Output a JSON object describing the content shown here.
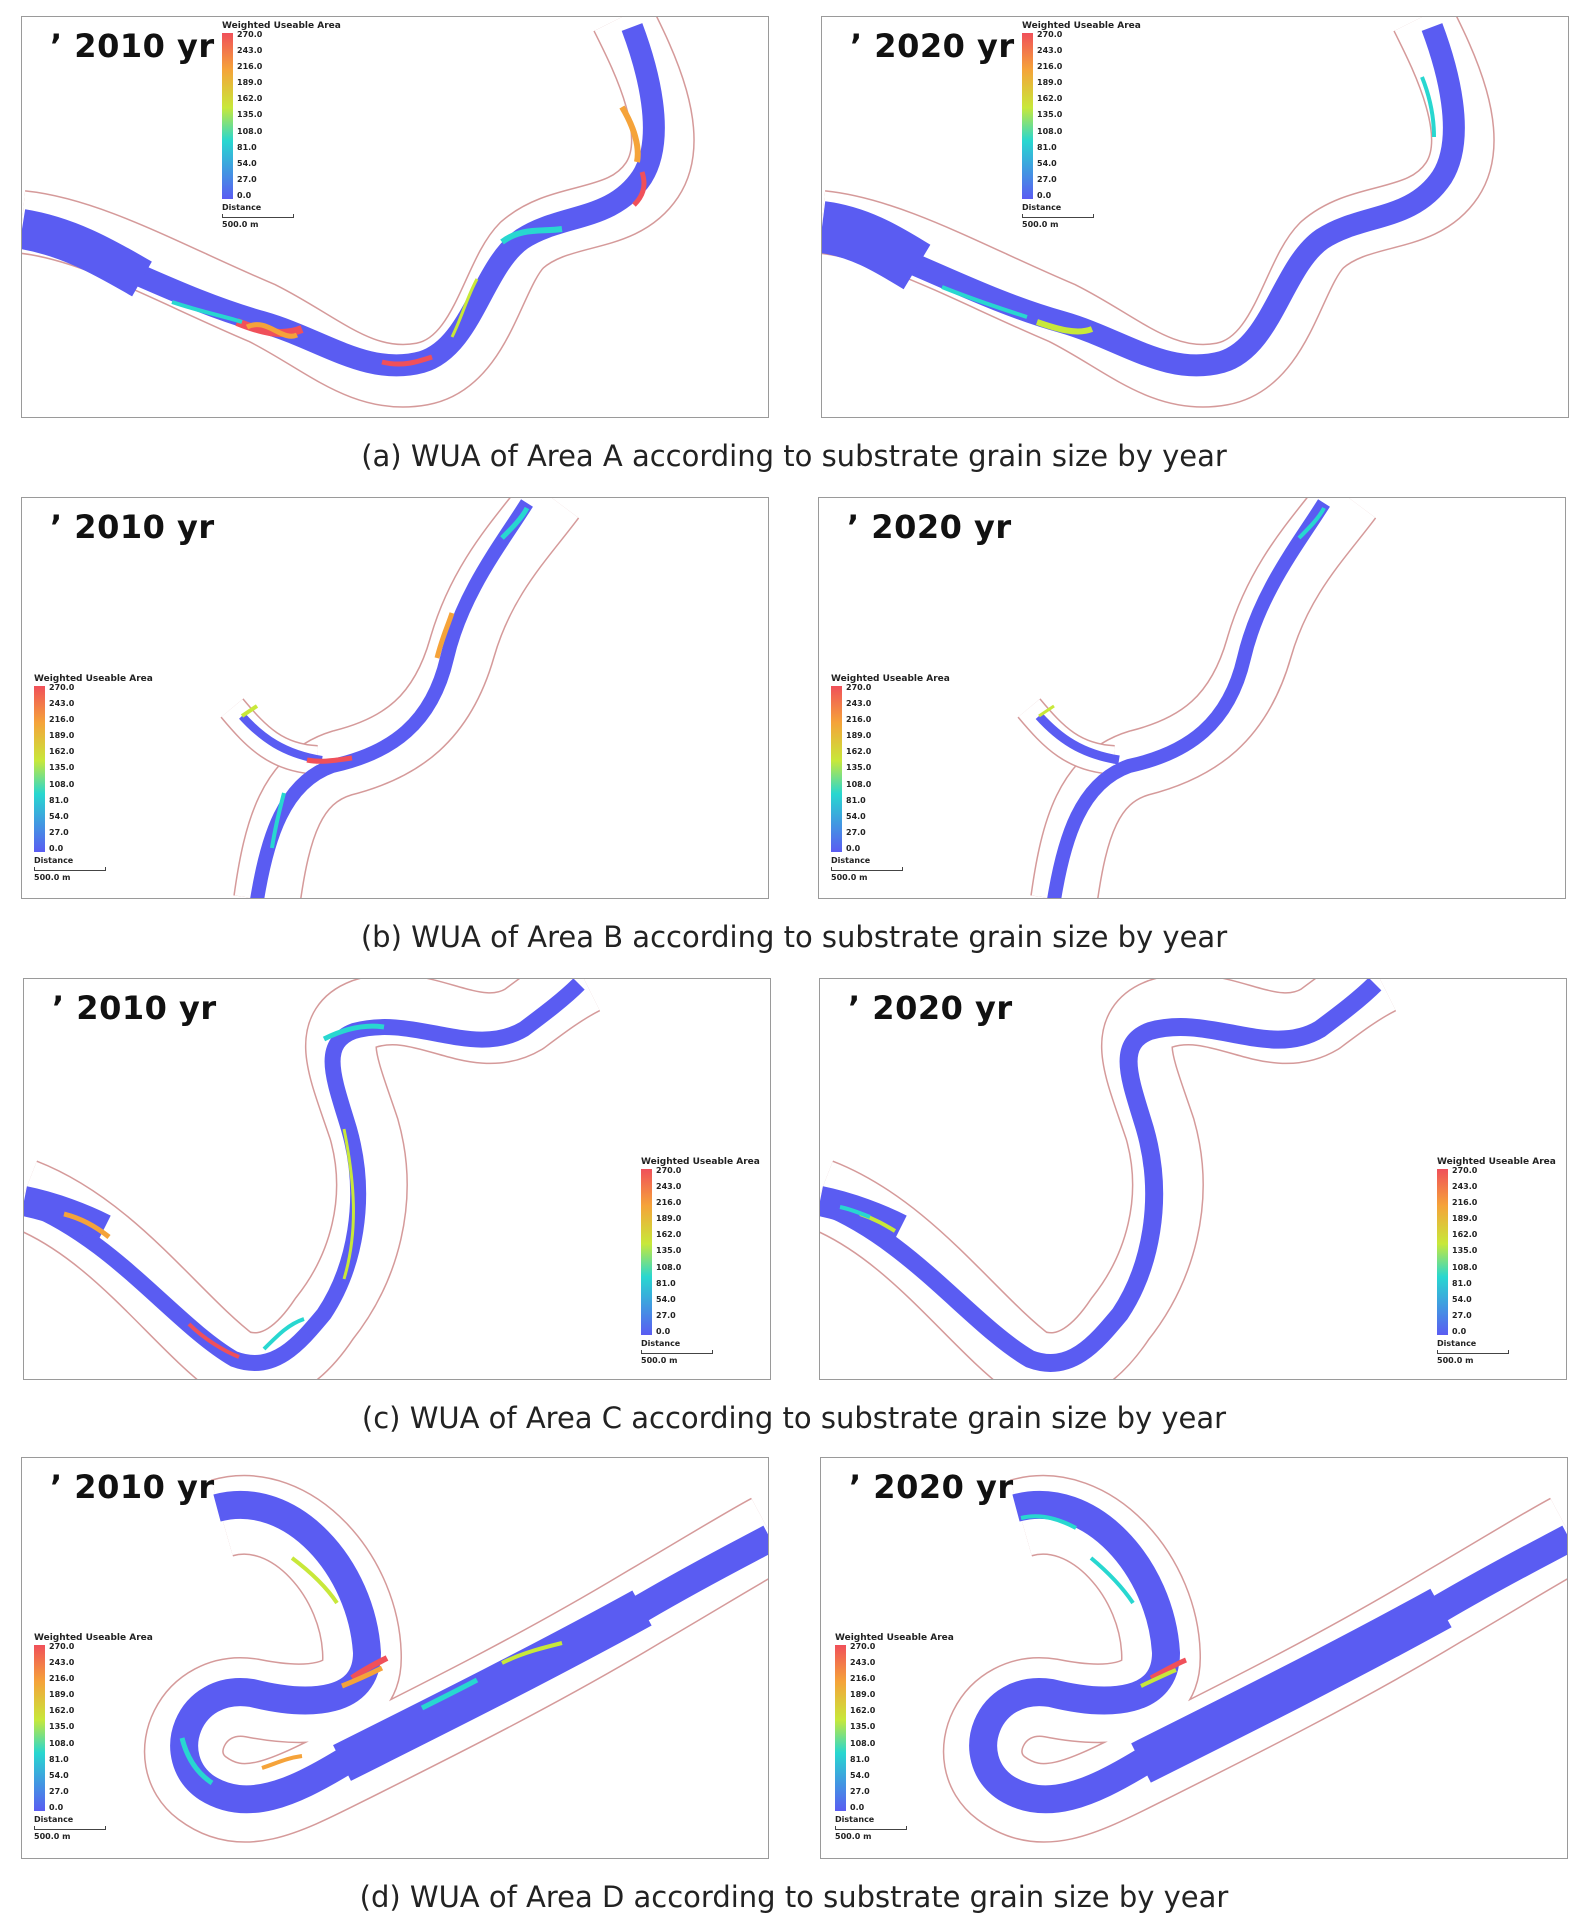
{
  "legend": {
    "title": "Weighted Useable Area",
    "ticks": [
      "270.0",
      "243.0",
      "216.0",
      "189.0",
      "162.0",
      "135.0",
      "108.0",
      "81.0",
      "54.0",
      "27.0",
      "0.0"
    ],
    "distance_label": "Distance",
    "scale_value": "500.0 m"
  },
  "colors": {
    "low": "#5a5cf2",
    "mid": "#28d7d0",
    "mid_high": "#c8e83a",
    "high": "#f5a33a",
    "max": "#f0505a",
    "bank": "#d59a9a"
  },
  "figures": [
    {
      "caption": "(a) WUA of Area A according to substrate grain size by year",
      "left_year": "’ 2010 yr",
      "right_year": "’ 2020 yr"
    },
    {
      "caption": "(b) WUA of Area B according to substrate grain size by year",
      "left_year": "’ 2010 yr",
      "right_year": "’ 2020 yr"
    },
    {
      "caption": "(c) WUA of Area C according to substrate grain size by year",
      "left_year": "’ 2010 yr",
      "right_year": "’ 2020 yr"
    },
    {
      "caption": "(d) WUA of Area D according to substrate grain size by year",
      "left_year": "’ 2010 yr",
      "right_year": "’ 2020 yr"
    }
  ]
}
